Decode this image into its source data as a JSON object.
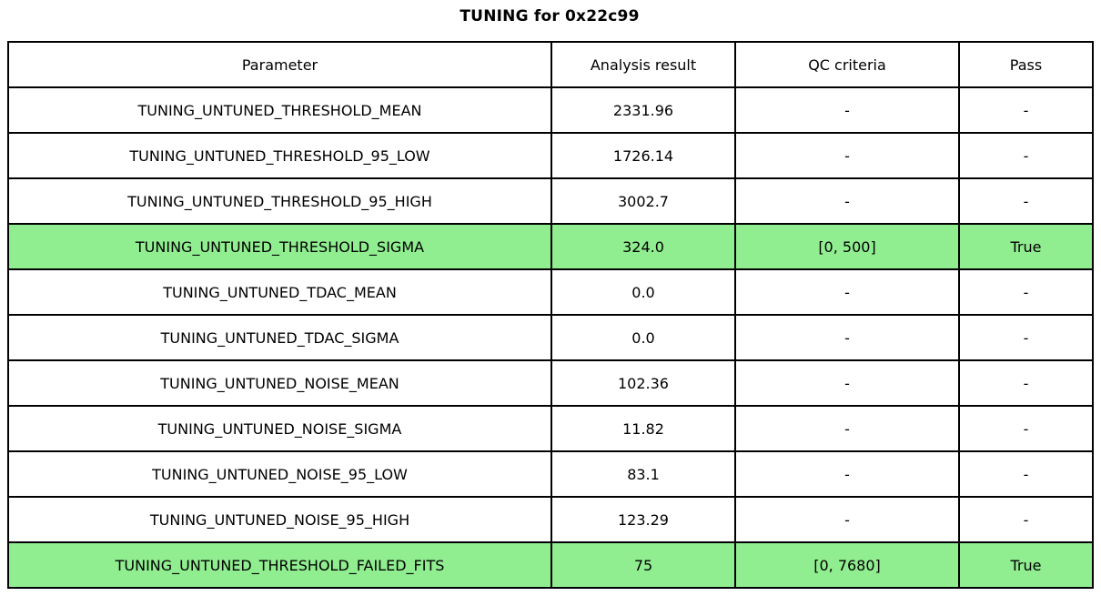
{
  "title": "TUNING for 0x22c99",
  "colors": {
    "highlight_green": "#90ee90",
    "border": "#000000",
    "background": "#ffffff",
    "text": "#000000"
  },
  "chart_data": {
    "type": "table",
    "title": "TUNING for 0x22c99",
    "columns": [
      "Parameter",
      "Analysis result",
      "QC criteria",
      "Pass"
    ],
    "rows": [
      {
        "cells": [
          "TUNING_UNTUNED_THRESHOLD_MEAN",
          "2331.96",
          "-",
          "-"
        ],
        "highlighted": false
      },
      {
        "cells": [
          "TUNING_UNTUNED_THRESHOLD_95_LOW",
          "1726.14",
          "-",
          "-"
        ],
        "highlighted": false
      },
      {
        "cells": [
          "TUNING_UNTUNED_THRESHOLD_95_HIGH",
          "3002.7",
          "-",
          "-"
        ],
        "highlighted": false
      },
      {
        "cells": [
          "TUNING_UNTUNED_THRESHOLD_SIGMA",
          "324.0",
          "[0, 500]",
          "True"
        ],
        "highlighted": true
      },
      {
        "cells": [
          "TUNING_UNTUNED_TDAC_MEAN",
          "0.0",
          "-",
          "-"
        ],
        "highlighted": false
      },
      {
        "cells": [
          "TUNING_UNTUNED_TDAC_SIGMA",
          "0.0",
          "-",
          "-"
        ],
        "highlighted": false
      },
      {
        "cells": [
          "TUNING_UNTUNED_NOISE_MEAN",
          "102.36",
          "-",
          "-"
        ],
        "highlighted": false
      },
      {
        "cells": [
          "TUNING_UNTUNED_NOISE_SIGMA",
          "11.82",
          "-",
          "-"
        ],
        "highlighted": false
      },
      {
        "cells": [
          "TUNING_UNTUNED_NOISE_95_LOW",
          "83.1",
          "-",
          "-"
        ],
        "highlighted": false
      },
      {
        "cells": [
          "TUNING_UNTUNED_NOISE_95_HIGH",
          "123.29",
          "-",
          "-"
        ],
        "highlighted": false
      },
      {
        "cells": [
          "TUNING_UNTUNED_THRESHOLD_FAILED_FITS",
          "75",
          "[0, 7680]",
          "True"
        ],
        "highlighted": true
      }
    ]
  }
}
